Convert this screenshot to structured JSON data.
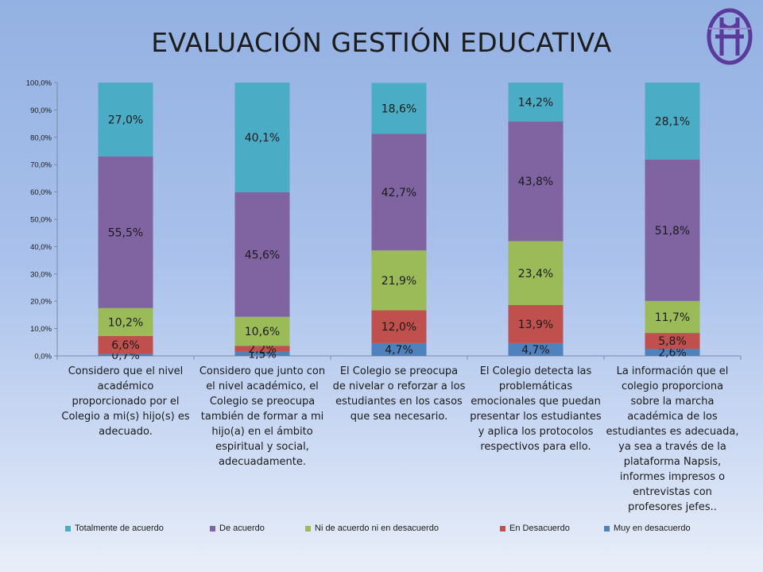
{
  "title": "EVALUACIÓN GESTIÓN EDUCATIVA",
  "colors": {
    "Totalmente de acuerdo": "#4bacc6",
    "De acuerdo": "#8064a2",
    "Ni de acuerdo ni en desacuerdo": "#9bbb59",
    "En Desacuerdo": "#c0504d",
    "Muy en desacuerdo": "#4f81bd"
  },
  "logo": {
    "icon": "school-crest-icon",
    "color": "#5a3a9a"
  },
  "chart_data": {
    "type": "bar",
    "stacked": true,
    "title": "EVALUACIÓN GESTIÓN EDUCATIVA",
    "categories": [
      "Considero que el nivel académico proporcionado por el Colegio a mi(s) hijo(s) es adecuado.",
      "Considero que junto con el nivel académico, el Colegio se preocupa también de formar a mi hijo(a) en el ámbito espiritual y social, adecuadamente.",
      "El Colegio se preocupa de nivelar o reforzar a los estudiantes en los casos que sea necesario.",
      "El Colegio detecta las problemáticas emocionales que puedan presentar los estudiantes y aplica los protocolos respectivos para ello.",
      "La información que el colegio proporciona sobre la marcha académica de los estudiantes es adecuada, ya sea a través de la plataforma Napsis, informes impresos o entrevistas con profesores jefes.."
    ],
    "series": [
      {
        "name": "Muy en desacuerdo",
        "values": [
          0.7,
          1.5,
          4.7,
          4.7,
          2.6
        ],
        "labels": [
          "0,7%",
          "1,5%",
          "4,7%",
          "4,7%",
          "2,6%"
        ]
      },
      {
        "name": "En Desacuerdo",
        "values": [
          6.6,
          2.2,
          12.0,
          13.9,
          5.8
        ],
        "labels": [
          "6,6%",
          "2,2%",
          "12,0%",
          "13,9%",
          "5,8%"
        ]
      },
      {
        "name": "Ni de acuerdo ni en desacuerdo",
        "values": [
          10.2,
          10.6,
          21.9,
          23.4,
          11.7
        ],
        "labels": [
          "10,2%",
          "10,6%",
          "21,9%",
          "23,4%",
          "11,7%"
        ]
      },
      {
        "name": "De acuerdo",
        "values": [
          55.5,
          45.6,
          42.7,
          43.8,
          51.8
        ],
        "labels": [
          "55,5%",
          "45,6%",
          "42,7%",
          "43,8%",
          "51,8%"
        ]
      },
      {
        "name": "Totalmente de acuerdo",
        "values": [
          27.0,
          40.1,
          18.6,
          14.2,
          28.1
        ],
        "labels": [
          "27,0%",
          "40,1%",
          "18,6%",
          "14,2%",
          "28,1%"
        ]
      }
    ],
    "ylim": [
      0,
      100
    ],
    "yticks": [
      "0,0%",
      "10,0%",
      "20,0%",
      "30,0%",
      "40,0%",
      "50,0%",
      "60,0%",
      "70,0%",
      "80,0%",
      "90,0%",
      "100,0%"
    ],
    "legend": {
      "position": "bottom",
      "order": [
        "Totalmente de acuerdo",
        "De acuerdo",
        "Ni de acuerdo ni en desacuerdo",
        "En Desacuerdo",
        "Muy en desacuerdo"
      ]
    },
    "grid": false
  }
}
